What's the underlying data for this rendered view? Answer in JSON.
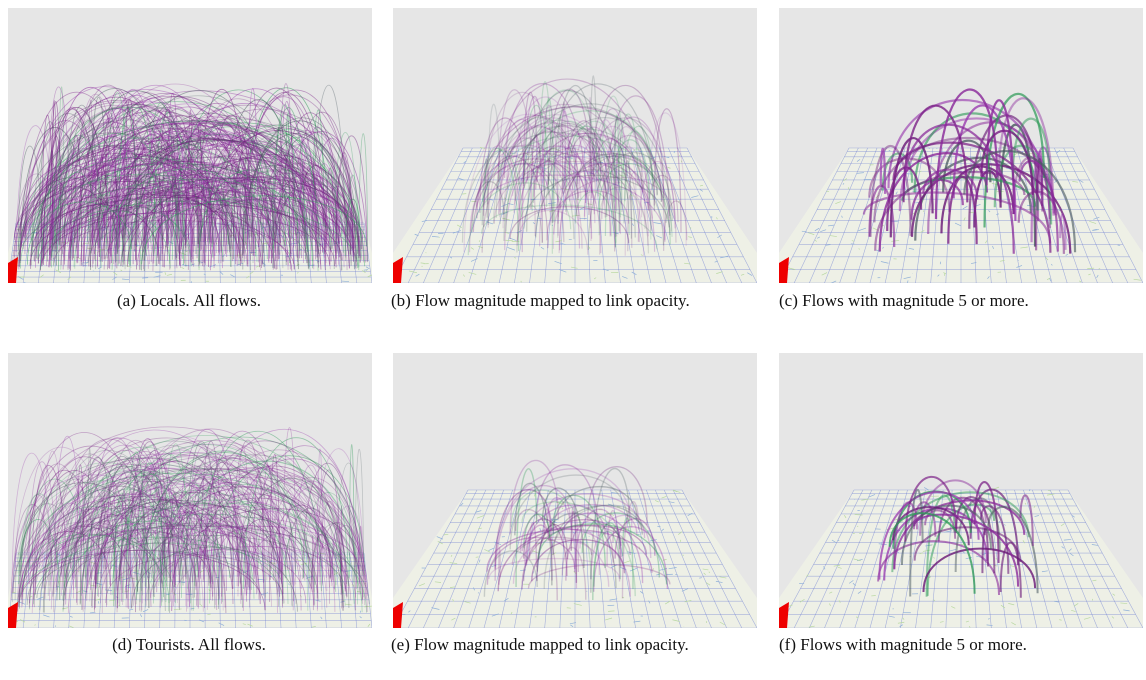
{
  "panels": [
    {
      "caption": "(a) Locals. All flows."
    },
    {
      "caption": "(b) Flow magnitude mapped to link opacity."
    },
    {
      "caption": "(c) Flows with magnitude 5 or more."
    },
    {
      "caption": "(d) Tourists. All flows."
    },
    {
      "caption": "(e) Flow magnitude mapped to link opacity."
    },
    {
      "caption": "(f) Flows with magnitude 5 or more."
    }
  ]
}
